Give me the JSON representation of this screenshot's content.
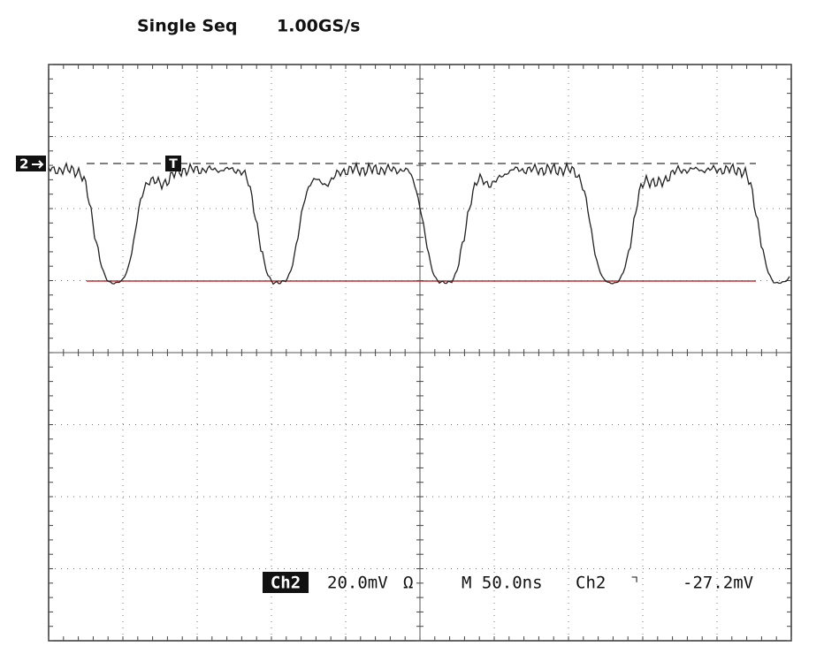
{
  "header": {
    "mode": "Single Seq",
    "rate": "1.00GS/s"
  },
  "channel_marker": "2",
  "trigger_marker": "T",
  "readout": {
    "channel": "Ch2",
    "scale": "20.0mV",
    "coupling": "Ω",
    "timebase": "M 50.0ns",
    "trigger_source": "Ch2",
    "trigger_slope": "⌝",
    "trigger_level": "-27.2mV"
  }
}
